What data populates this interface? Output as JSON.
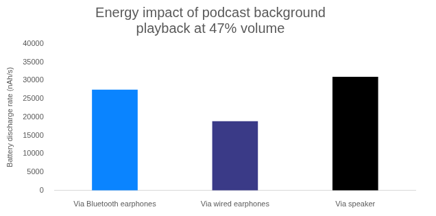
{
  "chart_data": {
    "type": "bar",
    "title": "Energy impact of podcast background playback at 47% volume",
    "y_label": "Battery discharge rate (nAh/s)",
    "categories": [
      "Via Bluetooth earphones",
      "Via wired earphones",
      "Via speaker"
    ],
    "values": [
      27500,
      18900,
      31000
    ],
    "colors": [
      "#0a84ff",
      "#3a3a87",
      "#000000"
    ],
    "ylim": [
      0,
      40000
    ],
    "yticks": [
      0,
      5000,
      10000,
      15000,
      20000,
      25000,
      30000,
      35000,
      40000
    ],
    "grid": false
  }
}
